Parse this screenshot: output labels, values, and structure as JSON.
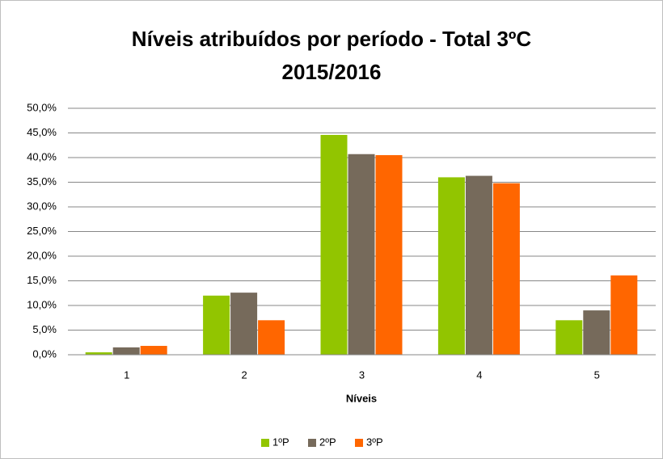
{
  "chart_data": {
    "type": "bar",
    "title": [
      "Níveis atribuídos  por período - Total 3ºC",
      "2015/2016"
    ],
    "xlabel": "Níveis",
    "categories": [
      "1",
      "2",
      "3",
      "4",
      "5"
    ],
    "series": [
      {
        "name": "1ºP",
        "color": "#92c500",
        "values": [
          0.5,
          12.0,
          44.6,
          36.0,
          7.0
        ]
      },
      {
        "name": "2ºP",
        "color": "#766a5b",
        "values": [
          1.5,
          12.6,
          40.7,
          36.3,
          9.0
        ]
      },
      {
        "name": "3ºP",
        "color": "#ff6600",
        "values": [
          1.8,
          7.0,
          40.5,
          34.8,
          16.1
        ]
      }
    ],
    "ylim": [
      0,
      50
    ],
    "yticks": [
      {
        "value": 0,
        "label": "0,0%"
      },
      {
        "value": 5,
        "label": "5,0%"
      },
      {
        "value": 10,
        "label": "10,0%"
      },
      {
        "value": 15,
        "label": "15,0%"
      },
      {
        "value": 20,
        "label": "20,0%"
      },
      {
        "value": 25,
        "label": "25,0%"
      },
      {
        "value": 30,
        "label": "30,0%"
      },
      {
        "value": 35,
        "label": "35,0%"
      },
      {
        "value": 40,
        "label": "40,0%"
      },
      {
        "value": 45,
        "label": "45,0%"
      },
      {
        "value": 50,
        "label": "50,0%"
      }
    ],
    "grid": true,
    "legend": "bottom"
  }
}
